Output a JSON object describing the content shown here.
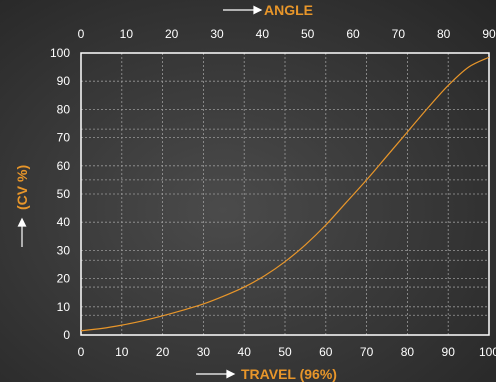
{
  "chart_data": {
    "type": "line",
    "xlabel": "TRAVEL (96%)",
    "x2label": "ANGLE",
    "ylabel": "(CV %)",
    "xlim": [
      0,
      100
    ],
    "x2lim": [
      0,
      90
    ],
    "ylim": [
      0,
      100
    ],
    "x_ticks": [
      "0",
      "10",
      "20",
      "30",
      "40",
      "50",
      "60",
      "70",
      "80",
      "90",
      "100"
    ],
    "x2_ticks": [
      "0",
      "10",
      "20",
      "30",
      "40",
      "50",
      "60",
      "70",
      "80",
      "90"
    ],
    "y_ticks": [
      "0",
      "10",
      "20",
      "30",
      "40",
      "50",
      "60",
      "70",
      "80",
      "90",
      "100"
    ],
    "grid": true,
    "series": [
      {
        "color": "#e8962a",
        "points": [
          [
            0,
            1.5
          ],
          [
            5,
            2.3
          ],
          [
            10,
            3.5
          ],
          [
            15,
            5.0
          ],
          [
            20,
            6.8
          ],
          [
            25,
            8.8
          ],
          [
            30,
            11.0
          ],
          [
            35,
            13.8
          ],
          [
            40,
            17.0
          ],
          [
            45,
            21.0
          ],
          [
            50,
            26.0
          ],
          [
            55,
            32.0
          ],
          [
            60,
            39.0
          ],
          [
            65,
            47.0
          ],
          [
            70,
            55.0
          ],
          [
            75,
            63.5
          ],
          [
            80,
            72.0
          ],
          [
            85,
            80.5
          ],
          [
            90,
            88.5
          ],
          [
            95,
            95.0
          ],
          [
            100,
            98.5
          ]
        ]
      }
    ],
    "colors": {
      "curve": "#e8962a",
      "title": "#e8962a",
      "axis": "#ffffff",
      "grid": "#9a9a9a"
    }
  }
}
